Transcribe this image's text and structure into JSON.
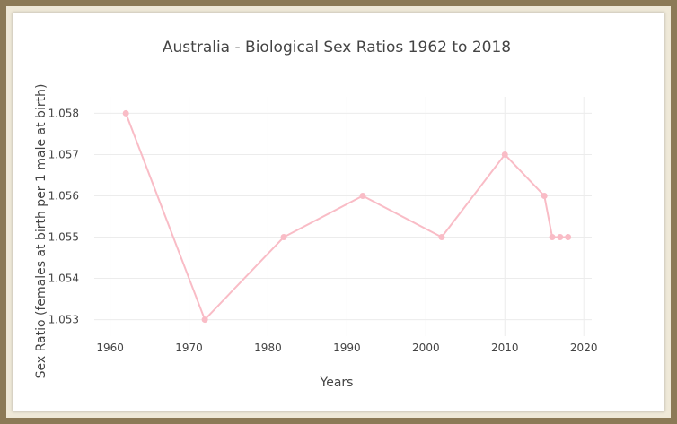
{
  "chart_data": {
    "type": "line",
    "title": "Australia - Biological Sex Ratios 1962 to 2018",
    "xlabel": "Years",
    "ylabel": "Sex Ratio (females at birth per 1 male at birth)",
    "xlim": [
      1958,
      2021
    ],
    "ylim": [
      1.0526,
      1.0584
    ],
    "x_ticks": [
      1960,
      1970,
      1980,
      1990,
      2000,
      2010,
      2020
    ],
    "y_ticks": [
      1.053,
      1.054,
      1.055,
      1.056,
      1.057,
      1.058
    ],
    "grid": true,
    "series": [
      {
        "color": "#f9bcc6",
        "x": [
          1962,
          1972,
          1982,
          1992,
          2002,
          2010,
          2015,
          2016,
          2017,
          2018
        ],
        "y": [
          1.058,
          1.053,
          1.055,
          1.056,
          1.055,
          1.057,
          1.056,
          1.055,
          1.055,
          1.055
        ]
      }
    ]
  }
}
